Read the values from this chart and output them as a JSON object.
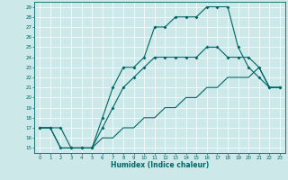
{
  "xlabel": "Humidex (Indice chaleur)",
  "bg_color": "#cce8e8",
  "line_color": "#006666",
  "xlim": [
    -0.5,
    23.5
  ],
  "ylim": [
    14.5,
    29.5
  ],
  "yticks": [
    15,
    16,
    17,
    18,
    19,
    20,
    21,
    22,
    23,
    24,
    25,
    26,
    27,
    28,
    29
  ],
  "xticks": [
    0,
    1,
    2,
    3,
    4,
    5,
    6,
    7,
    8,
    9,
    10,
    11,
    12,
    13,
    14,
    15,
    16,
    17,
    18,
    19,
    20,
    21,
    22,
    23
  ],
  "line1_x": [
    0,
    1,
    2,
    3,
    4,
    5,
    6,
    7,
    8,
    9,
    10,
    11,
    12,
    13,
    14,
    15,
    16,
    17,
    18,
    19,
    20,
    21,
    22,
    23
  ],
  "line1_y": [
    17,
    17,
    17,
    15,
    15,
    15,
    18,
    21,
    23,
    23,
    24,
    27,
    27,
    28,
    28,
    28,
    29,
    29,
    29,
    25,
    23,
    22,
    21,
    21
  ],
  "line2_x": [
    0,
    1,
    2,
    3,
    4,
    5,
    6,
    7,
    8,
    9,
    10,
    11,
    12,
    13,
    14,
    15,
    16,
    17,
    18,
    19,
    20,
    21,
    22,
    23
  ],
  "line2_y": [
    17,
    17,
    15,
    15,
    15,
    15,
    17,
    19,
    21,
    22,
    23,
    24,
    24,
    24,
    24,
    24,
    25,
    25,
    24,
    24,
    24,
    23,
    21,
    21
  ],
  "line3_x": [
    0,
    1,
    2,
    3,
    4,
    5,
    6,
    7,
    8,
    9,
    10,
    11,
    12,
    13,
    14,
    15,
    16,
    17,
    18,
    19,
    20,
    21,
    22,
    23
  ],
  "line3_y": [
    17,
    17,
    15,
    15,
    15,
    15,
    16,
    16,
    17,
    17,
    18,
    18,
    19,
    19,
    20,
    20,
    21,
    21,
    22,
    22,
    22,
    23,
    21,
    21
  ]
}
